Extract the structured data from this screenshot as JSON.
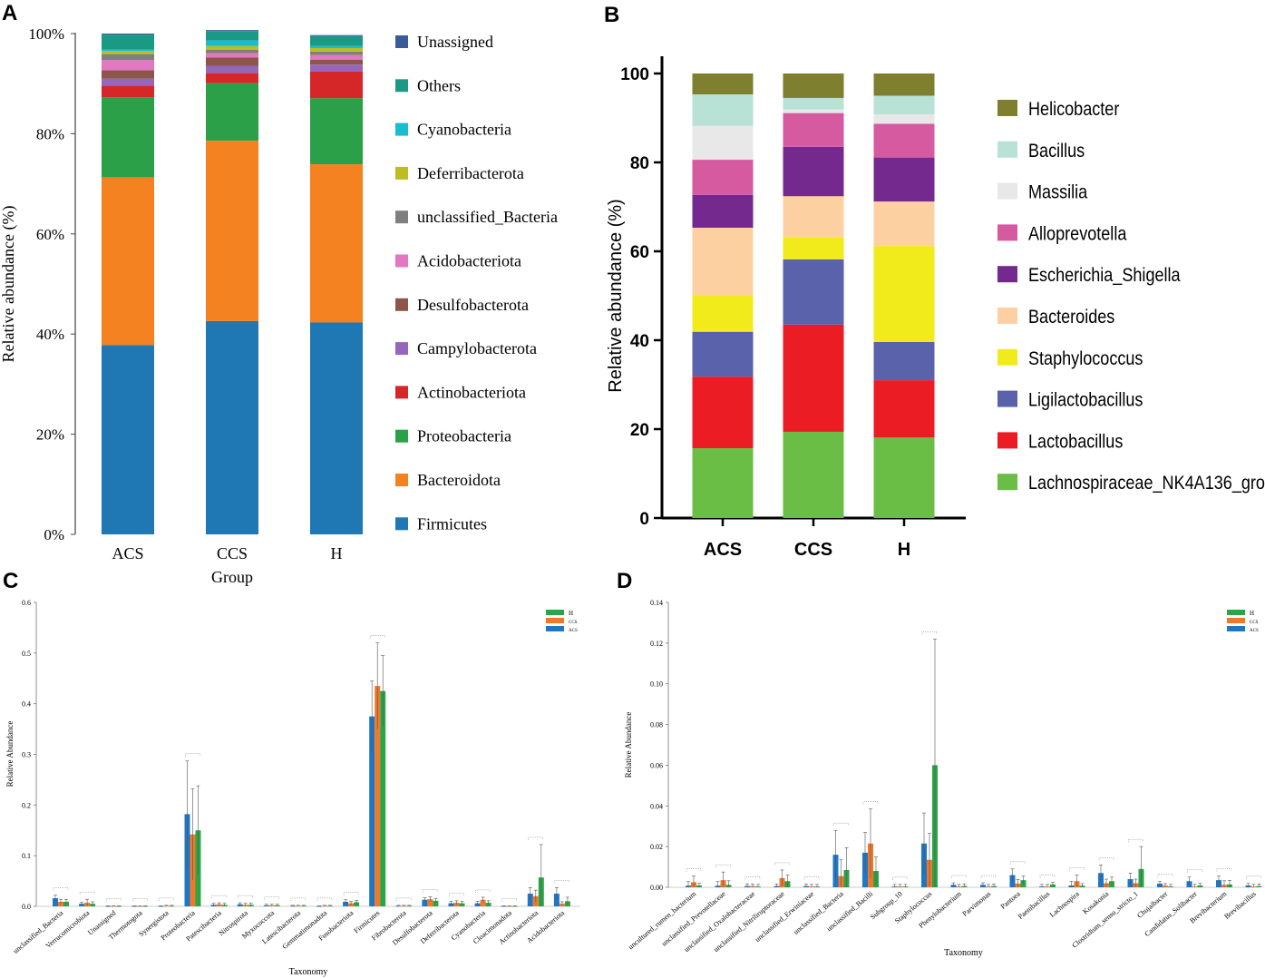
{
  "panel_labels": {
    "a": "A",
    "b": "B",
    "c": "C",
    "d": "D"
  },
  "chart_data": [
    {
      "panel": "A",
      "type": "bar",
      "stacked": true,
      "title": "",
      "xlabel": "Group",
      "ylabel": "Relative abundance (%)",
      "ylim": [
        0,
        100
      ],
      "yticks": [
        "0%",
        "20%",
        "40%",
        "60%",
        "80%",
        "100%"
      ],
      "categories": [
        "ACS",
        "CCS",
        "H"
      ],
      "legend_position": "right",
      "series": [
        {
          "name": "Firmicutes",
          "color": "#1f77b4",
          "values": [
            37.8,
            42.6,
            42.3
          ]
        },
        {
          "name": "Bacteroidota",
          "color": "#f58220",
          "values": [
            33.5,
            36.0,
            31.6
          ]
        },
        {
          "name": "Proteobacteria",
          "color": "#2ca048",
          "values": [
            16.0,
            11.5,
            13.2
          ]
        },
        {
          "name": "Actinobacteriota",
          "color": "#d62728",
          "values": [
            2.3,
            2.0,
            5.3
          ]
        },
        {
          "name": "Campylobacterota",
          "color": "#9467bd",
          "values": [
            1.4,
            1.4,
            1.4
          ]
        },
        {
          "name": "Desulfobacterota",
          "color": "#8c564b",
          "values": [
            1.7,
            1.7,
            1.0
          ]
        },
        {
          "name": "Acidobacteriota",
          "color": "#e377c2",
          "values": [
            2.0,
            0.9,
            0.9
          ]
        },
        {
          "name": "unclassified_Bacteria",
          "color": "#7f7f7f",
          "values": [
            1.2,
            0.7,
            0.7
          ]
        },
        {
          "name": "Deferribacterota",
          "color": "#bcbd22",
          "values": [
            0.6,
            0.7,
            0.7
          ]
        },
        {
          "name": "Cyanobacteria",
          "color": "#17becf",
          "values": [
            0.3,
            1.1,
            0.4
          ]
        },
        {
          "name": "Others",
          "color": "#1a9a85",
          "values": [
            3.0,
            1.9,
            2.0
          ]
        },
        {
          "name": "Unassigned",
          "color": "#3b5a9a",
          "values": [
            0.2,
            0.2,
            0.2
          ]
        }
      ],
      "legend_order": [
        "Unassigned",
        "Others",
        "Cyanobacteria",
        "Deferribacterota",
        "unclassified_Bacteria",
        "Acidobacteriota",
        "Desulfobacterota",
        "Campylobacterota",
        "Actinobacteriota",
        "Proteobacteria",
        "Bacteroidota",
        "Firmicutes"
      ]
    },
    {
      "panel": "B",
      "type": "bar",
      "stacked": true,
      "title": "",
      "xlabel": "",
      "ylabel": "Relative abundance (%)",
      "ylim": [
        0,
        100
      ],
      "yticks": [
        "0",
        "20",
        "40",
        "60",
        "80",
        "100"
      ],
      "categories": [
        "ACS",
        "CCS",
        "H"
      ],
      "legend_position": "right",
      "series": [
        {
          "name": "Lachnospiraceae_NK4A136_group",
          "color": "#6abd45",
          "values": [
            15.7,
            19.4,
            18.1
          ]
        },
        {
          "name": "Lactobacillus",
          "color": "#ec1c24",
          "values": [
            16.1,
            24.1,
            12.9
          ]
        },
        {
          "name": "Ligilactobacillus",
          "color": "#5a62ac",
          "values": [
            10.1,
            14.7,
            8.6
          ]
        },
        {
          "name": "Staphylococcus",
          "color": "#f2eb1b",
          "values": [
            8.2,
            5.0,
            21.6
          ]
        },
        {
          "name": "Bacteroides",
          "color": "#fdd0a2",
          "values": [
            15.2,
            9.2,
            10.0
          ]
        },
        {
          "name": "Escherichia_Shigella",
          "color": "#74298f",
          "values": [
            7.4,
            11.1,
            9.9
          ]
        },
        {
          "name": "Alloprevotella",
          "color": "#d65aa0",
          "values": [
            7.9,
            7.6,
            7.6
          ]
        },
        {
          "name": "Massilia",
          "color": "#e8e8e8",
          "values": [
            7.6,
            0.8,
            2.1
          ]
        },
        {
          "name": "Bacillus",
          "color": "#b7e2d5",
          "values": [
            7.1,
            2.6,
            4.2
          ]
        },
        {
          "name": "Helicobacter",
          "color": "#7f7f30",
          "values": [
            4.7,
            5.5,
            5.0
          ]
        }
      ],
      "legend_order": [
        "Helicobacter",
        "Bacillus",
        "Massilia",
        "Alloprevotella",
        "Escherichia_Shigella",
        "Bacteroides",
        "Staphylococcus",
        "Ligilactobacillus",
        "Lactobacillus",
        "Lachnospiraceae_NK4A136_group"
      ]
    },
    {
      "panel": "C",
      "type": "bar",
      "grouped": true,
      "error_bars": true,
      "title": "",
      "xlabel": "Taxonomy",
      "ylabel": "Relative Abundance",
      "ylim": [
        0,
        0.6
      ],
      "yticks": [
        "0.0",
        "0.1",
        "0.2",
        "0.3",
        "0.4",
        "0.5",
        "0.6"
      ],
      "legend_position": "top-right",
      "legend_order": [
        "H",
        "CCS",
        "ACS"
      ],
      "categories": [
        "unclassified_Bacteria",
        "Verrucomicrobiota",
        "Unassigned",
        "Thermotogota",
        "Synergistota",
        "Proteobacteria",
        "Patescibacteria",
        "Nitrospirota",
        "Myxococcota",
        "Latescibacterota",
        "Gemmatimonadota",
        "Fusobacteriota",
        "Firmicutes",
        "Fibrobacterota",
        "Desulfobacterota",
        "Deferribacterota",
        "Cyanobacteria",
        "Cloacimonadota",
        "Actinobacteriota",
        "Acidobacteriota"
      ],
      "series": [
        {
          "name": "ACS",
          "color": "#1f77c4",
          "values": [
            0.016,
            0.005,
            0.0005,
            0.0005,
            0.0005,
            0.182,
            0.003,
            0.004,
            0.002,
            0.001,
            0.0005,
            0.009,
            0.375,
            0.001,
            0.013,
            0.006,
            0.006,
            0.0005,
            0.025,
            0.025
          ],
          "errors": [
            0.006,
            0.003,
            0.0005,
            0.0005,
            0.0005,
            0.105,
            0.003,
            0.003,
            0.002,
            0.001,
            0.0005,
            0.004,
            0.07,
            0.001,
            0.004,
            0.004,
            0.004,
            0.0005,
            0.012,
            0.012
          ]
        },
        {
          "name": "CCS",
          "color": "#f0782a",
          "values": [
            0.009,
            0.007,
            0.0005,
            0.0005,
            0.001,
            0.142,
            0.004,
            0.003,
            0.002,
            0.001,
            0.001,
            0.006,
            0.435,
            0.001,
            0.014,
            0.007,
            0.013,
            0.0005,
            0.02,
            0.005
          ],
          "errors": [
            0.005,
            0.007,
            0.0005,
            0.0005,
            0.001,
            0.09,
            0.003,
            0.003,
            0.002,
            0.001,
            0.001,
            0.004,
            0.085,
            0.001,
            0.005,
            0.004,
            0.005,
            0.0005,
            0.012,
            0.004
          ]
        },
        {
          "name": "H",
          "color": "#2ca548",
          "values": [
            0.009,
            0.005,
            0.0005,
            0.0005,
            0.001,
            0.15,
            0.003,
            0.003,
            0.002,
            0.001,
            0.001,
            0.008,
            0.425,
            0.001,
            0.011,
            0.006,
            0.007,
            0.0005,
            0.057,
            0.01
          ],
          "errors": [
            0.005,
            0.004,
            0.0005,
            0.0005,
            0.001,
            0.088,
            0.003,
            0.003,
            0.002,
            0.001,
            0.001,
            0.004,
            0.07,
            0.001,
            0.004,
            0.004,
            0.004,
            0.0005,
            0.065,
            0.008
          ]
        }
      ]
    },
    {
      "panel": "D",
      "type": "bar",
      "grouped": true,
      "error_bars": true,
      "title": "",
      "xlabel": "Taxonomy",
      "ylabel": "Relative Abundance",
      "ylim": [
        0,
        0.14
      ],
      "yticks": [
        "0.00",
        "0.02",
        "0.04",
        "0.06",
        "0.08",
        "0.10",
        "0.12",
        "0.14"
      ],
      "legend_position": "top-right",
      "legend_order": [
        "H",
        "CCS",
        "ACS"
      ],
      "categories": [
        "uncultured_rumen_bacterium",
        "unclassified_Prevotellaceae",
        "unclassified_Oxalobacteraceae",
        "unclassified_Nitriliruptoraceae",
        "unclassified_Erwiniaceae",
        "unclassified_Bacteria",
        "unclassified_Bacilli",
        "Subgroup_10",
        "Staphylococcus",
        "Phenylobacterium",
        "Parvimonas",
        "Pantoea",
        "Paenibacillus",
        "Lachnospira",
        "Kosakonia",
        "Clostridium_sensu_stricto_1",
        "Chujaibacter",
        "Candidatus_Solibacter",
        "Brevibacterium",
        "Brevibacillus"
      ],
      "series": [
        {
          "name": "ACS",
          "color": "#1f77c4",
          "values": [
            0.0008,
            0.0008,
            0.0006,
            0.0006,
            0.0006,
            0.016,
            0.017,
            0.0004,
            0.0215,
            0.0012,
            0.0012,
            0.006,
            0.0004,
            0.0009,
            0.007,
            0.004,
            0.0018,
            0.003,
            0.0035,
            0.0009
          ],
          "errors": [
            0.002,
            0.002,
            0.001,
            0.001,
            0.001,
            0.012,
            0.01,
            0.001,
            0.015,
            0.001,
            0.001,
            0.003,
            0.001,
            0.002,
            0.004,
            0.003,
            0.001,
            0.002,
            0.002,
            0.001
          ]
        },
        {
          "name": "CCS",
          "color": "#f0782a",
          "values": [
            0.0025,
            0.0035,
            0.0006,
            0.0045,
            0.0004,
            0.0055,
            0.0215,
            0.0004,
            0.0135,
            0.0004,
            0.0004,
            0.0018,
            0.0004,
            0.003,
            0.002,
            0.002,
            0.0008,
            0.0004,
            0.0012,
            0.0004
          ],
          "errors": [
            0.003,
            0.004,
            0.001,
            0.004,
            0.001,
            0.008,
            0.017,
            0.001,
            0.013,
            0.001,
            0.001,
            0.002,
            0.001,
            0.003,
            0.002,
            0.002,
            0.001,
            0.001,
            0.002,
            0.001
          ]
        },
        {
          "name": "H",
          "color": "#2ca548",
          "values": [
            0.0009,
            0.0012,
            0.0004,
            0.003,
            0.0004,
            0.0085,
            0.008,
            0.0004,
            0.06,
            0.0006,
            0.0006,
            0.0035,
            0.0014,
            0.0008,
            0.003,
            0.009,
            0.0004,
            0.0009,
            0.0014,
            0.0006
          ],
          "errors": [
            0.001,
            0.002,
            0.001,
            0.003,
            0.001,
            0.011,
            0.007,
            0.001,
            0.062,
            0.001,
            0.001,
            0.002,
            0.001,
            0.001,
            0.002,
            0.011,
            0.001,
            0.001,
            0.002,
            0.001
          ]
        }
      ]
    }
  ]
}
